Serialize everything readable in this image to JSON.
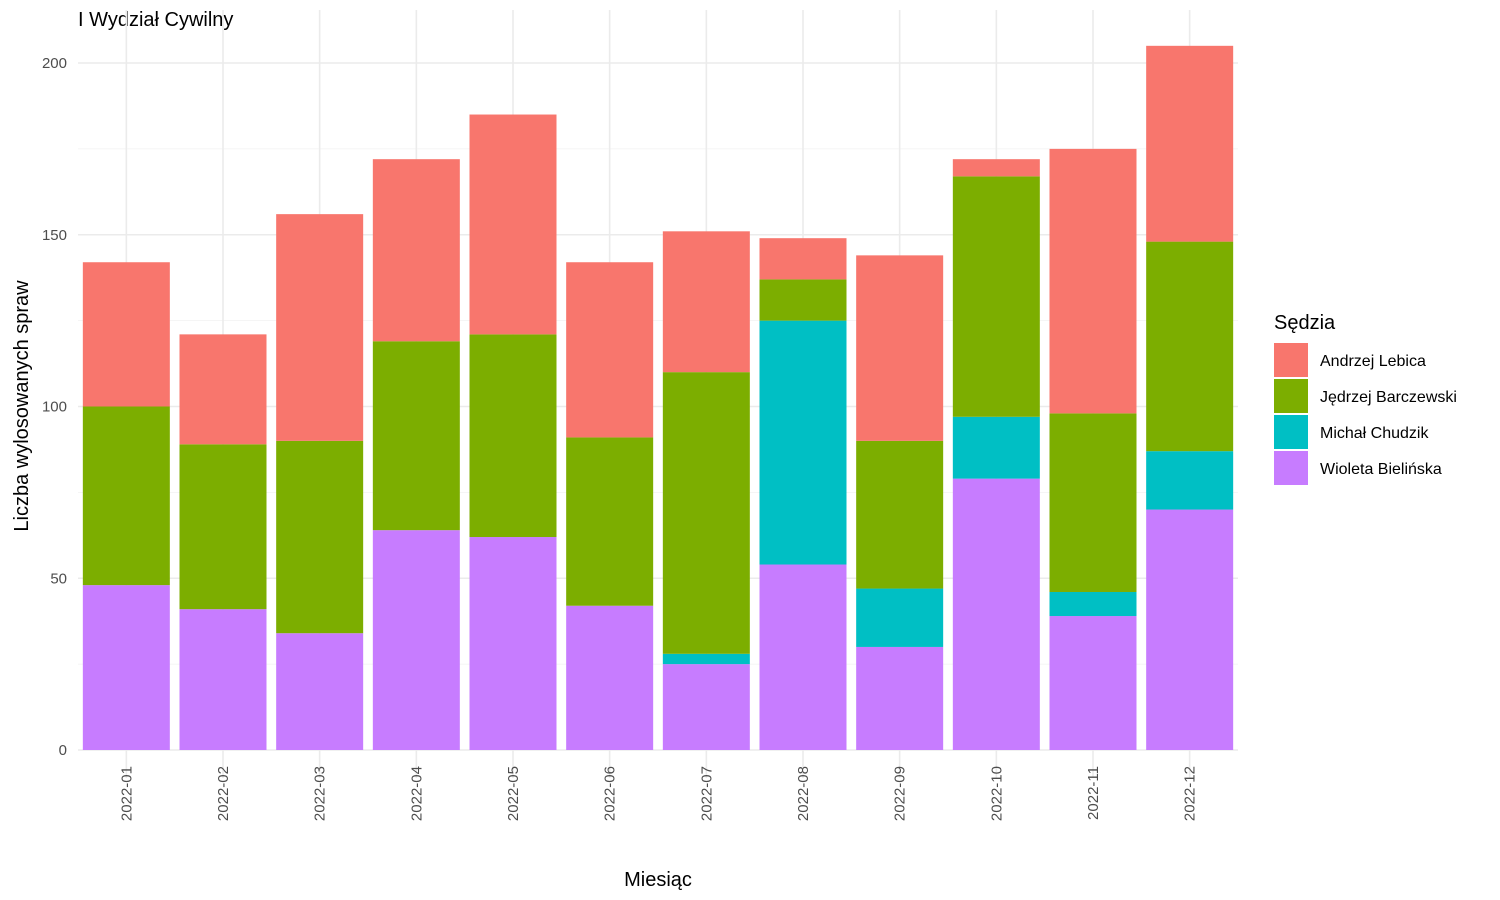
{
  "chart_data": {
    "type": "bar",
    "stacked": true,
    "title": "I Wydział Cywilny",
    "xlabel": "Miesiąc",
    "ylabel": "Liczba wylosowanych spraw",
    "ylim": [
      0,
      210
    ],
    "yticks": [
      0,
      50,
      100,
      150,
      200
    ],
    "grid": true,
    "legend_title": "Sędzia",
    "legend_position": "right",
    "categories": [
      "2022-01",
      "2022-02",
      "2022-03",
      "2022-04",
      "2022-05",
      "2022-06",
      "2022-07",
      "2022-08",
      "2022-09",
      "2022-10",
      "2022-11",
      "2022-12"
    ],
    "series": [
      {
        "name": "Andrzej Lebica",
        "color": "#F8766D",
        "values": [
          42,
          32,
          66,
          53,
          64,
          51,
          41,
          12,
          54,
          5,
          77,
          57
        ]
      },
      {
        "name": "Jędrzej Barczewski",
        "color": "#7CAE00",
        "values": [
          52,
          48,
          56,
          55,
          59,
          49,
          82,
          12,
          43,
          70,
          52,
          61
        ]
      },
      {
        "name": "Michał Chudzik",
        "color": "#00BFC4",
        "values": [
          0,
          0,
          0,
          0,
          0,
          0,
          3,
          71,
          17,
          18,
          7,
          17
        ]
      },
      {
        "name": "Wioleta Bielińska",
        "color": "#C77CFF",
        "values": [
          48,
          41,
          34,
          64,
          62,
          42,
          25,
          54,
          30,
          79,
          39,
          70
        ]
      }
    ]
  }
}
